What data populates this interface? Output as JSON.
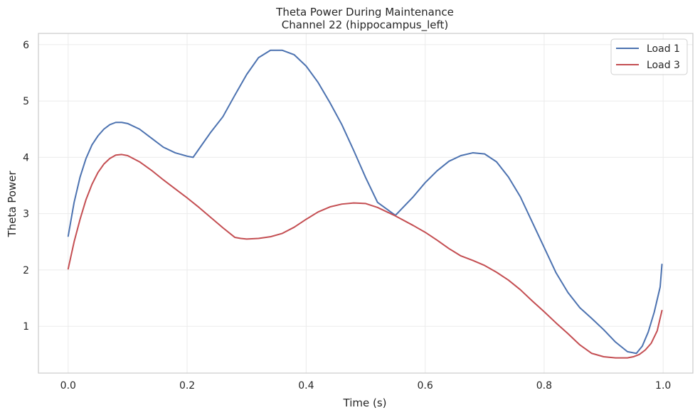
{
  "chart_data": {
    "type": "line",
    "title": "Theta Power During Maintenance",
    "subtitle": "Channel 22 (hippocampus_left)",
    "xlabel": "Time (s)",
    "ylabel": "Theta Power",
    "xlim": [
      -0.05,
      1.05
    ],
    "ylim": [
      0.17,
      6.2
    ],
    "xticks": [
      0.0,
      0.2,
      0.4,
      0.6,
      0.8,
      1.0
    ],
    "xtick_labels": [
      "0.0",
      "0.2",
      "0.4",
      "0.6",
      "0.8",
      "1.0"
    ],
    "yticks": [
      1,
      2,
      3,
      4,
      5,
      6
    ],
    "ytick_labels": [
      "1",
      "2",
      "3",
      "4",
      "5",
      "6"
    ],
    "grid": true,
    "legend_position": "top-right",
    "series": [
      {
        "name": "Load 1",
        "color": "#4c72b0",
        "x": [
          0.0,
          0.01,
          0.02,
          0.03,
          0.04,
          0.05,
          0.06,
          0.07,
          0.08,
          0.09,
          0.1,
          0.12,
          0.14,
          0.16,
          0.18,
          0.2,
          0.21,
          0.22,
          0.24,
          0.26,
          0.28,
          0.3,
          0.32,
          0.34,
          0.36,
          0.38,
          0.4,
          0.42,
          0.44,
          0.46,
          0.48,
          0.5,
          0.52,
          0.55,
          0.58,
          0.6,
          0.62,
          0.64,
          0.66,
          0.68,
          0.7,
          0.72,
          0.74,
          0.76,
          0.78,
          0.8,
          0.82,
          0.84,
          0.86,
          0.88,
          0.9,
          0.92,
          0.94,
          0.955,
          0.965,
          0.975,
          0.985,
          0.995,
          0.998
        ],
        "values": [
          2.6,
          3.2,
          3.65,
          3.98,
          4.22,
          4.38,
          4.5,
          4.58,
          4.62,
          4.62,
          4.6,
          4.5,
          4.34,
          4.18,
          4.08,
          4.02,
          4.0,
          4.15,
          4.45,
          4.72,
          5.1,
          5.47,
          5.77,
          5.9,
          5.9,
          5.82,
          5.62,
          5.33,
          4.97,
          4.58,
          4.12,
          3.64,
          3.2,
          2.97,
          3.3,
          3.55,
          3.76,
          3.93,
          4.03,
          4.08,
          4.06,
          3.92,
          3.65,
          3.3,
          2.85,
          2.4,
          1.95,
          1.6,
          1.33,
          1.14,
          0.94,
          0.72,
          0.55,
          0.52,
          0.65,
          0.9,
          1.25,
          1.7,
          2.1
        ]
      },
      {
        "name": "Load 3",
        "color": "#c44e52",
        "x": [
          0.0,
          0.01,
          0.02,
          0.03,
          0.04,
          0.05,
          0.06,
          0.07,
          0.08,
          0.09,
          0.1,
          0.12,
          0.14,
          0.16,
          0.18,
          0.2,
          0.22,
          0.24,
          0.26,
          0.28,
          0.29,
          0.3,
          0.32,
          0.34,
          0.36,
          0.38,
          0.4,
          0.42,
          0.44,
          0.46,
          0.48,
          0.5,
          0.52,
          0.55,
          0.58,
          0.6,
          0.62,
          0.64,
          0.66,
          0.68,
          0.7,
          0.72,
          0.74,
          0.76,
          0.78,
          0.8,
          0.82,
          0.84,
          0.86,
          0.88,
          0.9,
          0.92,
          0.94,
          0.95,
          0.96,
          0.97,
          0.98,
          0.99,
          0.998
        ],
        "values": [
          2.02,
          2.5,
          2.9,
          3.25,
          3.52,
          3.73,
          3.88,
          3.98,
          4.04,
          4.05,
          4.03,
          3.92,
          3.77,
          3.6,
          3.44,
          3.28,
          3.11,
          2.93,
          2.75,
          2.58,
          2.56,
          2.55,
          2.56,
          2.59,
          2.65,
          2.76,
          2.9,
          3.03,
          3.12,
          3.17,
          3.19,
          3.18,
          3.11,
          2.96,
          2.79,
          2.67,
          2.53,
          2.38,
          2.25,
          2.17,
          2.08,
          1.96,
          1.82,
          1.65,
          1.45,
          1.26,
          1.06,
          0.87,
          0.67,
          0.52,
          0.46,
          0.44,
          0.44,
          0.46,
          0.5,
          0.58,
          0.7,
          0.92,
          1.28
        ]
      }
    ]
  }
}
